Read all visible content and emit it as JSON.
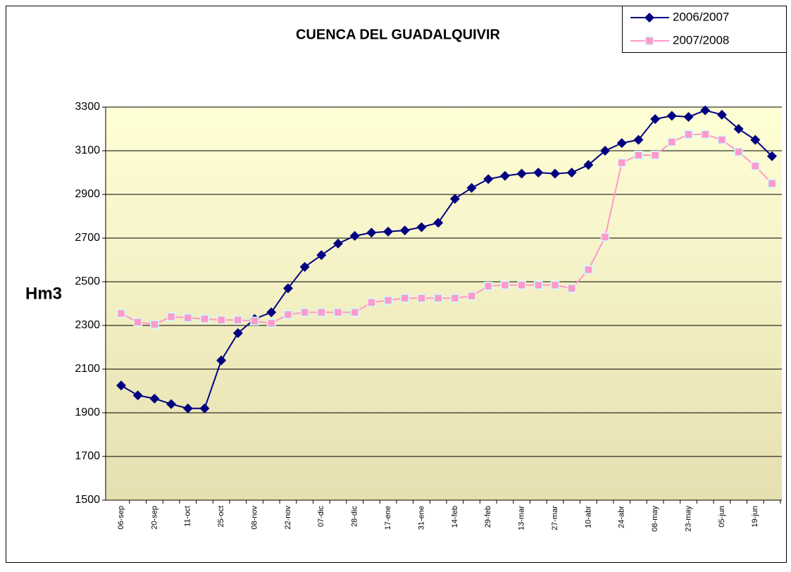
{
  "chart_data": {
    "type": "line",
    "title": "CUENCA DEL GUADALQUIVIR",
    "y_label": "Hm3",
    "categories": [
      "06-sep",
      null,
      "20-sep",
      null,
      "11-oct",
      null,
      "25-oct",
      null,
      "08-nov",
      null,
      "22-nov",
      null,
      "07-dic",
      null,
      "28-dic",
      null,
      "17-ene",
      null,
      "31-ene",
      null,
      "14-feb",
      null,
      "29-feb",
      null,
      "13-mar",
      null,
      "27-mar",
      null,
      "10-abr",
      null,
      "24-abr",
      null,
      "08-may",
      null,
      "23-may",
      null,
      "05-jun",
      null,
      "19-jun",
      null
    ],
    "series": [
      {
        "name": "2006/2007",
        "color": "#000080",
        "marker": "diamond",
        "values": [
          2025,
          1980,
          1965,
          1940,
          1920,
          1920,
          2140,
          2265,
          2330,
          2360,
          2470,
          2568,
          2622,
          2675,
          2710,
          2725,
          2730,
          2735,
          2750,
          2770,
          2880,
          2930,
          2970,
          2985,
          2995,
          3000,
          2995,
          3000,
          3035,
          3100,
          3135,
          3150,
          3245,
          3260,
          3255,
          3285,
          3265,
          3200,
          3150,
          3075
        ]
      },
      {
        "name": "2007/2008",
        "color": "#ff99cc",
        "marker": "square",
        "values": [
          2355,
          2315,
          2305,
          2340,
          2335,
          2330,
          2325,
          2325,
          2320,
          2310,
          2350,
          2360,
          2360,
          2360,
          2360,
          2405,
          2415,
          2425,
          2425,
          2425,
          2425,
          2435,
          2480,
          2485,
          2485,
          2485,
          2485,
          2470,
          2555,
          2705,
          3045,
          3080,
          3080,
          3140,
          3175,
          3175,
          3150,
          3095,
          3030,
          2950
        ]
      }
    ],
    "ylim": [
      1500,
      3300
    ],
    "yticks": [
      1500,
      1700,
      1900,
      2100,
      2300,
      2500,
      2700,
      2900,
      3100,
      3300
    ],
    "grid": true,
    "legend": "top-right"
  }
}
